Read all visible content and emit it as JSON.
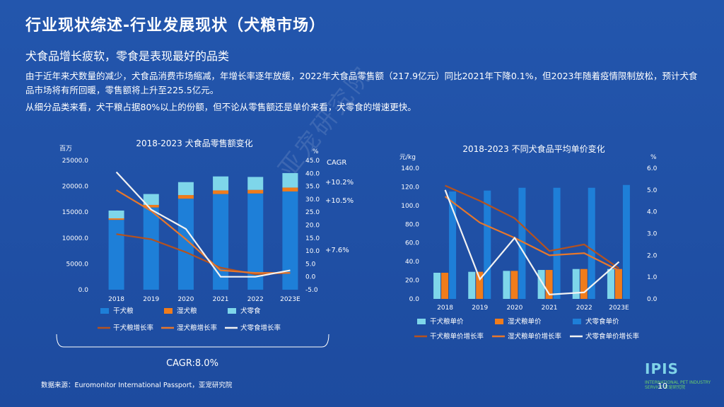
{
  "title": "行业现状综述-行业发展现状（犬粮市场）",
  "subtitle": "犬食品增长疲软，零食是表现最好的品类",
  "paragraph1": "由于近年来犬数量的减少，犬食品消费市场缩减，年增长率逐年放缓，2022年犬食品零售额（217.9亿元）同比2021年下降0.1%，但2023年随着疫情限制放松，预计犬食品市场将有所回暖，零售额将上升至225.5亿元。",
  "paragraph2": "从细分品类来看，犬干粮占据80%以上的份额，但不论从零售额还是单价来看，犬零食的增速更快。",
  "source": "数据来源：Euromonitor International Passport，亚宠研究院",
  "page_number": "10",
  "watermark": "亚宠研究院",
  "logo": {
    "text": "IPIS",
    "tagline": "INTERNATIONAL PET INDUSTRY SERVICE 亚宠研究院"
  },
  "colors": {
    "dry": "#1e7fd8",
    "wet": "#f07c1b",
    "snack": "#7ed6ea",
    "dry_line": "#b5521f",
    "wet_line": "#e8772a",
    "snack_line": "#f2f2f2"
  },
  "chart_data": [
    {
      "type": "bar",
      "stacked": true,
      "title": "2018-2023 犬食品零售额变化",
      "yunit_left": "百万",
      "yunit_right": "%",
      "categories": [
        "2018",
        "2019",
        "2020",
        "2021",
        "2022",
        "2023E"
      ],
      "yticks_left": [
        "0.0",
        "5000.0",
        "10000.0",
        "15000.0",
        "20000.0",
        "25000.0"
      ],
      "yticks_right": [
        "-5.0",
        "0.0",
        "5.0",
        "10.0",
        "15.0",
        "20.0",
        "25.0",
        "30.0",
        "35.0",
        "40.0",
        "45.0"
      ],
      "ylim_left": [
        0,
        25000
      ],
      "ylim_right": [
        -5,
        45
      ],
      "series": [
        {
          "name": "干犬粮",
          "kind": "bar",
          "axis": "left",
          "values": [
            13500,
            15900,
            17600,
            18500,
            18600,
            19000
          ]
        },
        {
          "name": "湿犬粮",
          "kind": "bar",
          "axis": "left",
          "values": [
            300,
            500,
            700,
            700,
            700,
            750
          ]
        },
        {
          "name": "犬零食",
          "kind": "bar",
          "axis": "left",
          "values": [
            1500,
            2100,
            2500,
            2700,
            2500,
            2800
          ]
        },
        {
          "name": "干犬粮增长率",
          "kind": "line",
          "axis": "right",
          "values": [
            16.5,
            14.5,
            9.5,
            3.5,
            1.0,
            1.5
          ]
        },
        {
          "name": "湿犬粮增长率",
          "kind": "line",
          "axis": "right",
          "values": [
            33.5,
            25.5,
            14.5,
            2.5,
            1.5,
            1.5
          ]
        },
        {
          "name": "犬零食增长率",
          "kind": "line",
          "axis": "right",
          "values": [
            40.5,
            26.0,
            18.5,
            0.0,
            0.0,
            2.5
          ]
        }
      ],
      "cagr_header": "CAGR",
      "cagr_labels": [
        "+10.2%",
        "+10.5%",
        "+7.6%"
      ],
      "cagr_total": "CAGR:8.0%",
      "legend": [
        "干犬粮",
        "湿犬粮",
        "犬零食",
        "干犬粮增长率",
        "湿犬粮增长率",
        "犬零食增长率"
      ]
    },
    {
      "type": "bar",
      "title": "2018-2023 不同犬食品平均单价变化",
      "yunit_left": "元/kg",
      "yunit_right": "%",
      "categories": [
        "2018",
        "2019",
        "2020",
        "2021",
        "2022",
        "2023E"
      ],
      "yticks_left": [
        "0.0",
        "20.0",
        "40.0",
        "60.0",
        "80.0",
        "100.0",
        "120.0",
        "140.0"
      ],
      "yticks_right": [
        "0.0",
        "1.0",
        "2.0",
        "3.0",
        "4.0",
        "5.0",
        "6.0"
      ],
      "ylim_left": [
        0,
        140
      ],
      "ylim_right": [
        0,
        6
      ],
      "series": [
        {
          "name": "干犬粮单价",
          "kind": "bar",
          "axis": "left",
          "values": [
            28,
            29,
            30,
            31,
            32,
            32
          ]
        },
        {
          "name": "湿犬粮单价",
          "kind": "bar",
          "axis": "left",
          "values": [
            28,
            29,
            30,
            31,
            32,
            32
          ]
        },
        {
          "name": "犬零食单价",
          "kind": "bar",
          "axis": "left",
          "values": [
            115,
            116,
            119,
            119,
            119,
            122
          ]
        },
        {
          "name": "干犬粮单价增长率",
          "kind": "line",
          "axis": "right",
          "values": [
            5.2,
            4.5,
            3.7,
            2.2,
            2.5,
            1.4
          ]
        },
        {
          "name": "湿犬粮单价增长率",
          "kind": "line",
          "axis": "right",
          "values": [
            4.7,
            3.5,
            2.8,
            2.0,
            2.1,
            1.3
          ]
        },
        {
          "name": "犬零食单价增长率",
          "kind": "line",
          "axis": "right",
          "values": [
            5.0,
            0.9,
            2.8,
            0.2,
            0.3,
            1.7
          ]
        }
      ],
      "legend": [
        "干犬粮单价",
        "湿犬粮单价",
        "犬零食单价",
        "干犬粮单价增长率",
        "湿犬粮单价增长率",
        "犬零食单价增长率"
      ]
    }
  ]
}
